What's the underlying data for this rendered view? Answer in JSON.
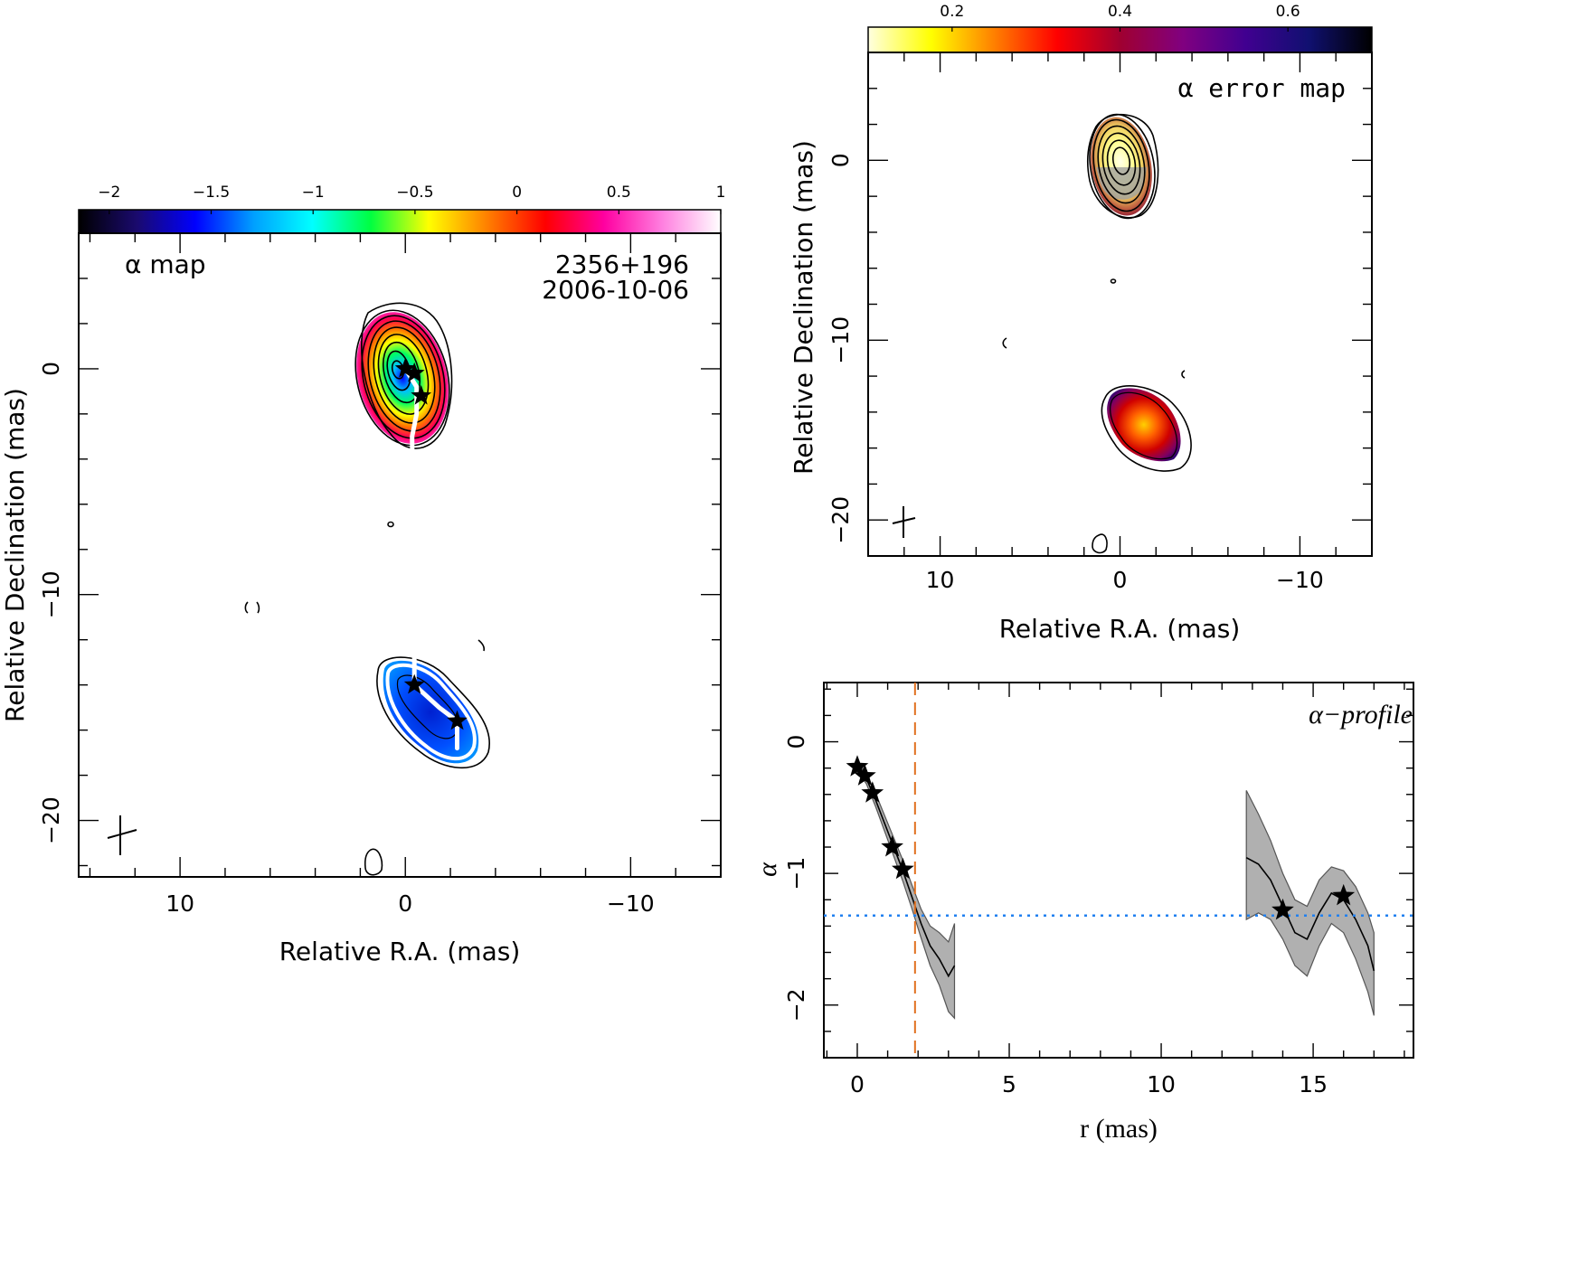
{
  "chart_data": [
    {
      "type": "heatmap",
      "panel": "alpha-map",
      "label": "α map",
      "source": "2356+196",
      "date": "2006-10-06",
      "colorbar": {
        "ticks": [
          -2,
          -1.5,
          -1,
          -0.5,
          0,
          0.5,
          1
        ],
        "tick_labels": [
          "−2",
          "−1.5",
          "−1",
          "−0.5",
          "0",
          "0.5",
          "1"
        ],
        "range": [
          -2.15,
          1.0
        ],
        "colormap": [
          "#000000",
          "#1a0a6e",
          "#0000ff",
          "#00a0ff",
          "#00ffff",
          "#00ff40",
          "#ffff00",
          "#ff8000",
          "#ff0000",
          "#ff00a0",
          "#ff80e0",
          "#ffffff"
        ]
      },
      "xlabel": "Relative R.A. (mas)",
      "ylabel": "Relative Declination (mas)",
      "xlim": [
        14.5,
        -14
      ],
      "ylim": [
        -22.5,
        6
      ],
      "xticks": [
        10,
        0,
        -10
      ],
      "xtick_labels": [
        "10",
        "0",
        "−10"
      ],
      "yticks": [
        0,
        -10,
        -20
      ],
      "ytick_labels": [
        "0",
        "−10",
        "−20"
      ],
      "stars": [
        [
          0.0,
          0.0
        ],
        [
          -0.4,
          -0.2
        ],
        [
          -0.7,
          -1.2
        ],
        [
          -0.4,
          -14.0
        ],
        [
          -2.3,
          -15.6
        ]
      ],
      "ridge_line": [
        [
          0.0,
          0.0
        ],
        [
          -0.5,
          -0.8
        ],
        [
          -0.5,
          -2.0
        ],
        [
          -0.3,
          -3.0
        ],
        [
          -0.4,
          -13.0
        ],
        [
          -0.4,
          -14.0
        ],
        [
          -1.5,
          -15.0
        ],
        [
          -2.3,
          -15.6
        ],
        [
          -2.3,
          -16.8
        ]
      ]
    },
    {
      "type": "heatmap",
      "panel": "alpha-error-map",
      "label": "α error map",
      "colorbar": {
        "ticks": [
          0.2,
          0.4,
          0.6
        ],
        "tick_labels": [
          "0.2",
          "0.4",
          "0.6"
        ],
        "range": [
          0.1,
          0.7
        ],
        "colormap": [
          "#ffffe0",
          "#ffff00",
          "#ff8000",
          "#ff0000",
          "#a00030",
          "#800080",
          "#400090",
          "#101070",
          "#000000"
        ]
      },
      "xlabel": "Relative R.A. (mas)",
      "ylabel": "Relative Declination (mas)",
      "xlim": [
        14,
        -14
      ],
      "ylim": [
        -22,
        6
      ],
      "xticks": [
        10,
        0,
        -10
      ],
      "xtick_labels": [
        "10",
        "0",
        "−10"
      ],
      "yticks": [
        0,
        -10,
        -20
      ],
      "ytick_labels": [
        "0",
        "−10",
        "−20"
      ]
    },
    {
      "type": "line",
      "panel": "alpha-profile",
      "label": "α−profile",
      "xlabel": "r (mas)",
      "ylabel": "α",
      "xlim": [
        -1.1,
        18.3
      ],
      "ylim": [
        -2.4,
        0.45
      ],
      "xticks": [
        0,
        5,
        10,
        15
      ],
      "xtick_labels": [
        "0",
        "5",
        "10",
        "15"
      ],
      "yticks": [
        0,
        -1,
        -2
      ],
      "ytick_labels": [
        "0",
        "−1",
        "−2"
      ],
      "reference_lines": {
        "vertical_dashed_x": 1.9,
        "horizontal_dotted_y": -1.32
      },
      "series": [
        {
          "x": [
            0.0,
            0.3,
            0.6,
            0.9,
            1.2,
            1.5,
            1.8,
            2.1,
            2.4,
            2.7,
            3.0,
            3.2
          ],
          "y": [
            -0.18,
            -0.28,
            -0.44,
            -0.62,
            -0.8,
            -0.98,
            -1.18,
            -1.38,
            -1.55,
            -1.65,
            -1.78,
            -1.7
          ],
          "lower": [
            -0.22,
            -0.32,
            -0.49,
            -0.68,
            -0.87,
            -1.06,
            -1.27,
            -1.49,
            -1.7,
            -1.85,
            -2.05,
            -2.1
          ],
          "upper": [
            -0.14,
            -0.24,
            -0.39,
            -0.56,
            -0.73,
            -0.9,
            -1.09,
            -1.27,
            -1.4,
            -1.45,
            -1.52,
            -1.38
          ]
        },
        {
          "x": [
            12.8,
            13.2,
            13.6,
            14.0,
            14.4,
            14.8,
            15.2,
            15.6,
            16.0,
            16.4,
            16.8,
            17.0
          ],
          "y": [
            -0.88,
            -0.93,
            -1.05,
            -1.25,
            -1.45,
            -1.5,
            -1.3,
            -1.15,
            -1.2,
            -1.35,
            -1.55,
            -1.74
          ],
          "lower": [
            -1.35,
            -1.3,
            -1.35,
            -1.5,
            -1.7,
            -1.78,
            -1.55,
            -1.38,
            -1.45,
            -1.65,
            -1.9,
            -2.08
          ],
          "upper": [
            -0.37,
            -0.55,
            -0.75,
            -1.0,
            -1.2,
            -1.25,
            -1.05,
            -0.95,
            -0.98,
            -1.1,
            -1.3,
            -1.45
          ]
        }
      ],
      "stars": [
        [
          0.0,
          -0.19
        ],
        [
          0.25,
          -0.26
        ],
        [
          0.5,
          -0.39
        ],
        [
          1.15,
          -0.8
        ],
        [
          1.5,
          -0.97
        ],
        [
          14.0,
          -1.28
        ],
        [
          16.0,
          -1.17
        ]
      ]
    }
  ]
}
